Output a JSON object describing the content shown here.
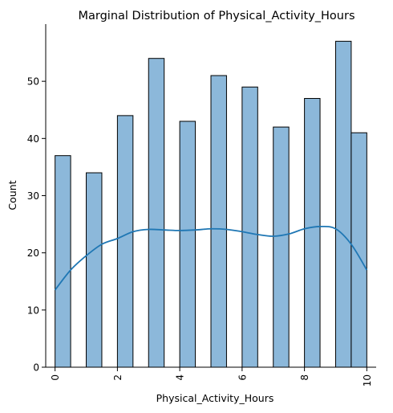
{
  "chart_data": {
    "type": "bar",
    "title": "Marginal Distribution of Physical_Activity_Hours",
    "xlabel": "Physical_Activity_Hours",
    "ylabel": "Count",
    "xlim": [
      -0.3,
      10.3
    ],
    "ylim": [
      0,
      60
    ],
    "xticks": [
      "0",
      "2",
      "4",
      "6",
      "8",
      "10"
    ],
    "yticks": [
      "0",
      "10",
      "20",
      "30",
      "40",
      "50"
    ],
    "bin_width": 0.5,
    "bins": [
      {
        "x0": 0.0,
        "x1": 0.5,
        "count": 37
      },
      {
        "x0": 1.0,
        "x1": 1.5,
        "count": 34
      },
      {
        "x0": 2.0,
        "x1": 2.5,
        "count": 44
      },
      {
        "x0": 3.0,
        "x1": 3.5,
        "count": 54
      },
      {
        "x0": 4.0,
        "x1": 4.5,
        "count": 43
      },
      {
        "x0": 5.0,
        "x1": 5.5,
        "count": 51
      },
      {
        "x0": 6.0,
        "x1": 6.5,
        "count": 49
      },
      {
        "x0": 7.0,
        "x1": 7.5,
        "count": 42
      },
      {
        "x0": 8.0,
        "x1": 8.5,
        "count": 47
      },
      {
        "x0": 9.0,
        "x1": 9.5,
        "count": 57
      },
      {
        "x0": 9.5,
        "x1": 10.0,
        "count": 41
      }
    ],
    "kde": {
      "x": [
        0,
        0.5,
        1,
        1.5,
        2,
        2.5,
        3,
        3.5,
        4,
        4.5,
        5,
        5.5,
        6,
        6.5,
        7,
        7.5,
        8,
        8.5,
        9,
        9.5,
        10
      ],
      "y": [
        13.5,
        17,
        19.5,
        21.5,
        22.5,
        23.7,
        24.1,
        24.0,
        23.9,
        24.0,
        24.2,
        24.1,
        23.7,
        23.2,
        22.9,
        23.3,
        24.2,
        24.6,
        24.2,
        21.5,
        17
      ]
    },
    "colors": {
      "bar_fill": "#8cb8da",
      "bar_edge": "#000000",
      "kde_line": "#1f77b4"
    },
    "grid": false,
    "legend": "none"
  }
}
